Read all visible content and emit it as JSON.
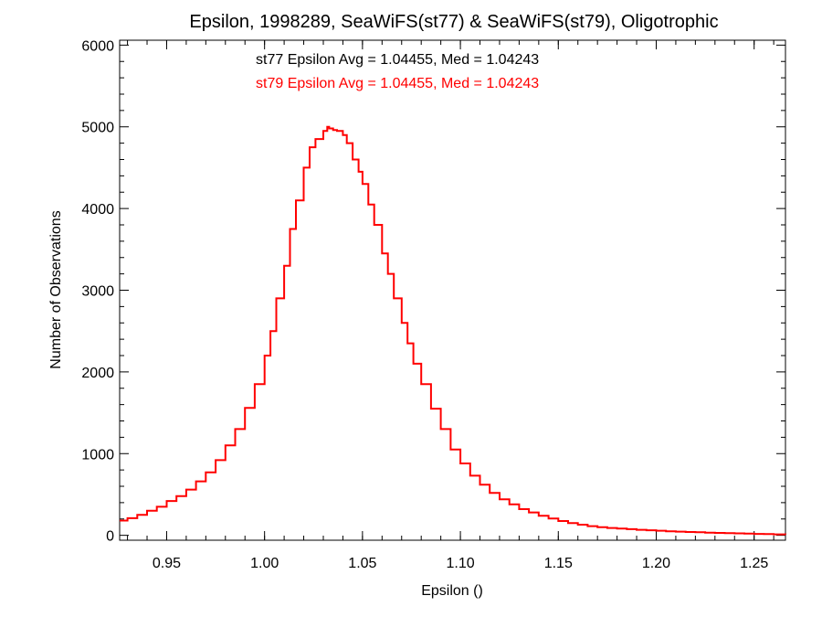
{
  "chart_data": {
    "type": "line",
    "title": "Epsilon, 1998289, SeaWiFS(st77) & SeaWiFS(st79), Oligotrophic",
    "xlabel": "Epsilon ()",
    "ylabel": "Number of Observations",
    "xlim": [
      0.926,
      1.266
    ],
    "ylim": [
      -60,
      6060
    ],
    "x_ticks": [
      0.95,
      1.0,
      1.05,
      1.1,
      1.15,
      1.2,
      1.25
    ],
    "x_tick_labels": [
      "0.95",
      "1.00",
      "1.05",
      "1.10",
      "1.15",
      "1.20",
      "1.25"
    ],
    "y_ticks": [
      0,
      1000,
      2000,
      3000,
      4000,
      5000,
      6000
    ],
    "y_tick_labels": [
      "0",
      "1000",
      "2000",
      "3000",
      "4000",
      "5000",
      "6000"
    ],
    "grid": false,
    "step": "histogram",
    "annotations": [
      {
        "text": "st77 Epsilon Avg = 1.04455, Med = 1.04243",
        "color": "#000000"
      },
      {
        "text": "st79 Epsilon Avg = 1.04455, Med = 1.04243",
        "color": "#ff0000"
      }
    ],
    "series": [
      {
        "color": "#ff0000",
        "x": [
          0.926,
          0.93,
          0.935,
          0.94,
          0.945,
          0.95,
          0.955,
          0.96,
          0.965,
          0.97,
          0.975,
          0.98,
          0.985,
          0.99,
          0.995,
          1.0,
          1.003,
          1.006,
          1.01,
          1.013,
          1.016,
          1.02,
          1.023,
          1.026,
          1.03,
          1.032,
          1.033,
          1.035,
          1.037,
          1.04,
          1.042,
          1.045,
          1.048,
          1.05,
          1.053,
          1.056,
          1.06,
          1.063,
          1.066,
          1.07,
          1.073,
          1.076,
          1.08,
          1.085,
          1.09,
          1.095,
          1.1,
          1.105,
          1.11,
          1.115,
          1.12,
          1.125,
          1.13,
          1.135,
          1.14,
          1.145,
          1.15,
          1.155,
          1.16,
          1.165,
          1.17,
          1.175,
          1.18,
          1.185,
          1.19,
          1.195,
          1.2,
          1.205,
          1.21,
          1.215,
          1.22,
          1.225,
          1.23,
          1.235,
          1.24,
          1.245,
          1.25,
          1.255,
          1.26,
          1.266
        ],
        "values": [
          180,
          210,
          250,
          300,
          350,
          420,
          480,
          560,
          660,
          770,
          920,
          1100,
          1300,
          1560,
          1850,
          2200,
          2500,
          2900,
          3300,
          3750,
          4100,
          4500,
          4750,
          4850,
          4950,
          5000,
          4980,
          4960,
          4950,
          4900,
          4800,
          4600,
          4450,
          4300,
          4050,
          3800,
          3450,
          3200,
          2900,
          2600,
          2350,
          2100,
          1850,
          1550,
          1300,
          1050,
          880,
          730,
          620,
          520,
          440,
          380,
          320,
          280,
          240,
          205,
          175,
          150,
          130,
          112,
          100,
          90,
          82,
          75,
          68,
          62,
          56,
          50,
          45,
          41,
          37,
          33,
          30,
          27,
          24,
          20,
          17,
          15,
          12,
          10
        ]
      }
    ]
  }
}
